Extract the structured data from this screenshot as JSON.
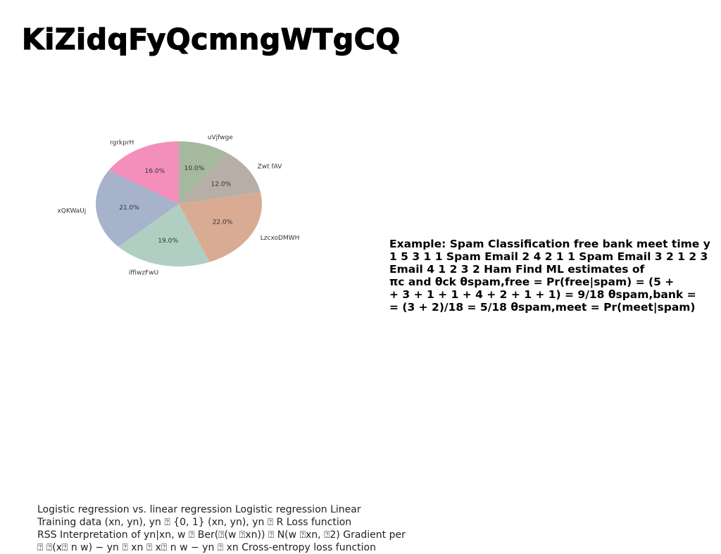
{
  "slide": {
    "title": "KiZidqFyQcmngWTgCQ"
  },
  "chart_data": {
    "type": "pie",
    "categories": [
      "uVjfwge",
      "Zwt fAV",
      "LzcxoDMWH",
      "iffiwzFwU",
      "xQKWaUj",
      "rgrkprH"
    ],
    "values": [
      10.0,
      12.0,
      22.0,
      19.0,
      21.0,
      16.0
    ],
    "value_labels": [
      "10.0%",
      "12.0%",
      "22.0%",
      "19.0%",
      "21.0%",
      "16.0%"
    ],
    "colors": [
      "#a6b99e",
      "#b8aea8",
      "#d9ab93",
      "#b0cfc2",
      "#a6b3cb",
      "#f48fbb"
    ],
    "start_angle_deg": 90,
    "direction": "clockwise",
    "title": ""
  },
  "right_text": {
    "lines": [
      "Example: Spam Classification free bank meet time y",
      "1 5 3 1 1 Spam Email 2 4 2 1 1 Spam Email 3 2 1 2 3",
      "Email 4 1 2 3 2 Ham Find ML estimates of",
      "πc and θck θspam,free = Pr(free|spam) = (5 +",
      "+ 3 + 1 + 1 + 4 + 2 + 1 + 1) = 9/18 θspam,bank =",
      "= (3 + 2)/18 = 5/18 θspam,meet = Pr(meet|spam)"
    ]
  },
  "bottom_text": {
    "lines": [
      "Logistic regression vs. linear regression Logistic regression Linear",
      "Training data (xn, yn), yn ⍰ {0, 1} (xn, yn), yn ⍰ R Loss function",
      "RSS Interpretation of yn|xn, w ⍰ Ber(⍰(w ⍰xn)) ⍰ N(w ⍰xn, ⍰2) Gradient per",
      "⍰ ⍰(x⍰ n w) − yn ⍰ xn ⍰ x⍰ n w − yn ⍰ xn Cross-entropy loss function"
    ]
  }
}
